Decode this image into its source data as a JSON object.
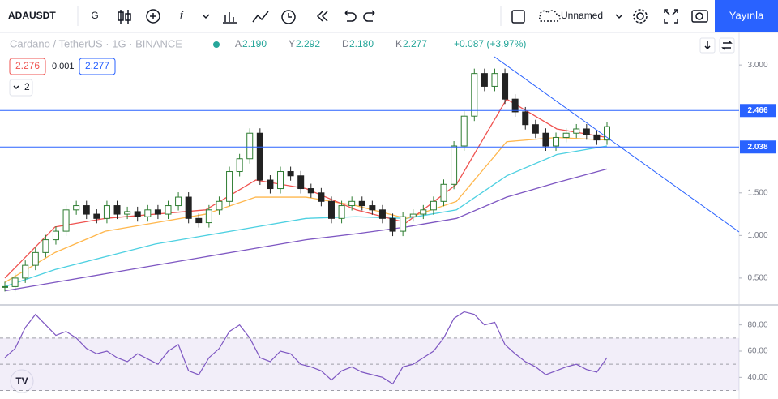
{
  "toolbar": {
    "symbol": "ADAUSDT",
    "interval": "G",
    "layout_name": "Unnamed",
    "publish": "Yayınla"
  },
  "legend": {
    "title": "Cardano / TetherUS · 1G · BINANCE",
    "ohlc": [
      {
        "label": "A",
        "value": "2.190"
      },
      {
        "label": "Y",
        "value": "2.292"
      },
      {
        "label": "D",
        "value": "2.180"
      },
      {
        "label": "K",
        "value": "2.277"
      }
    ],
    "change": "+0.087 (+3.97%)",
    "bid": "2.276",
    "spread": "0.001",
    "ask": "2.277",
    "indicators_count": "2"
  },
  "chart_data": {
    "type": "candlestick",
    "up_color": "#2e7d32",
    "down_color": "#222222",
    "closes": [
      0.4,
      0.5,
      0.65,
      0.8,
      0.95,
      1.05,
      1.3,
      1.35,
      1.25,
      1.2,
      1.35,
      1.25,
      1.28,
      1.22,
      1.3,
      1.25,
      1.35,
      1.45,
      1.2,
      1.15,
      1.3,
      1.4,
      1.75,
      1.9,
      2.2,
      1.65,
      1.55,
      1.75,
      1.7,
      1.55,
      1.5,
      1.4,
      1.2,
      1.35,
      1.4,
      1.35,
      1.3,
      1.2,
      1.05,
      1.22,
      1.25,
      1.3,
      1.4,
      1.6,
      2.05,
      2.4,
      2.9,
      2.75,
      2.9,
      2.6,
      2.45,
      2.3,
      2.2,
      2.05,
      2.15,
      2.2,
      2.25,
      2.18,
      2.12,
      2.277
    ],
    "ylim": [
      0.185,
      3.382
    ],
    "yticks": [
      {
        "value": 3,
        "label": "3.000"
      },
      {
        "value": 1.5,
        "label": "1.500"
      },
      {
        "value": 1,
        "label": "1.000"
      },
      {
        "value": 0.5,
        "label": "0.500"
      }
    ],
    "lines": [
      {
        "value": 2.466,
        "label": "2.466",
        "color": "#2962ff"
      },
      {
        "value": 2.038,
        "label": "2.038",
        "color": "#2962ff"
      }
    ],
    "ma": [
      {
        "color": "#7e57c2",
        "values": [
          0.35,
          0.45,
          0.55,
          0.65,
          0.75,
          0.85,
          0.95,
          1.02,
          1.1,
          1.2,
          1.45,
          1.62,
          1.78
        ]
      },
      {
        "color": "#4dd0e1",
        "values": [
          0.4,
          0.6,
          0.75,
          0.9,
          1.0,
          1.1,
          1.2,
          1.22,
          1.2,
          1.3,
          1.7,
          1.95,
          2.05
        ]
      },
      {
        "color": "#ffb74d",
        "values": [
          0.45,
          0.8,
          1.05,
          1.15,
          1.25,
          1.45,
          1.45,
          1.35,
          1.2,
          1.4,
          2.1,
          2.15,
          2.12
        ]
      },
      {
        "color": "#ef5350",
        "values": [
          0.5,
          1.1,
          1.2,
          1.25,
          1.3,
          1.65,
          1.55,
          1.3,
          1.15,
          1.6,
          2.6,
          2.25,
          2.15
        ]
      }
    ],
    "rsi": {
      "color": "#7e57c2",
      "values": [
        55,
        62,
        78,
        88,
        80,
        72,
        75,
        70,
        62,
        58,
        60,
        55,
        52,
        58,
        54,
        50,
        60,
        65,
        45,
        42,
        55,
        62,
        75,
        80,
        70,
        55,
        52,
        60,
        58,
        50,
        48,
        45,
        38,
        45,
        48,
        44,
        42,
        40,
        35,
        48,
        50,
        55,
        60,
        70,
        85,
        90,
        88,
        80,
        82,
        65,
        58,
        52,
        48,
        42,
        45,
        48,
        50,
        46,
        44,
        55
      ],
      "ylim": [
        26,
        94
      ],
      "yticks": [
        {
          "value": 80,
          "label": "80.00"
        },
        {
          "value": 60,
          "label": "60.00"
        },
        {
          "value": 40,
          "label": "40.00"
        }
      ],
      "levels": [
        70,
        50,
        30
      ]
    }
  }
}
